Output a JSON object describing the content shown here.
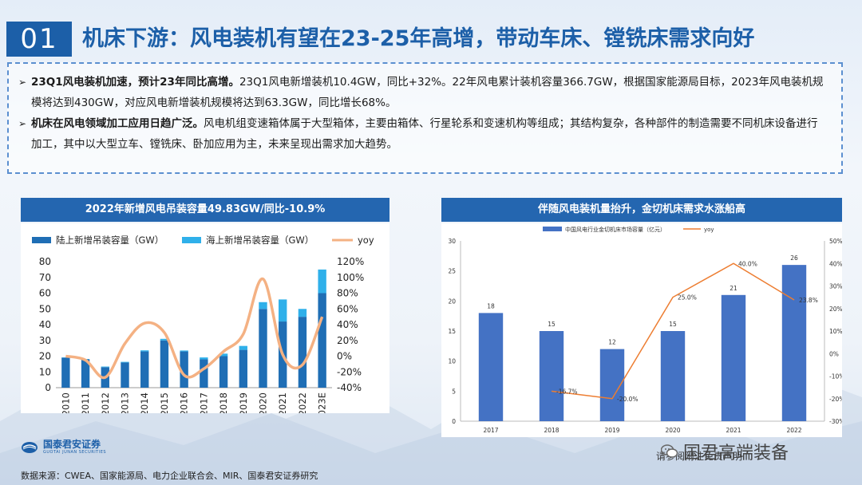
{
  "slide": {
    "number": "01",
    "title": "机床下游：风电装机有望在23-25年高增，带动车床、镗铣床需求向好"
  },
  "bullets": [
    {
      "marker": "➢",
      "bold": "23Q1风电装机加速，预计23年同比高增。",
      "text": "23Q1风电新增装机10.4GW，同比+32%。22年风电累计装机容量366.7GW，根据国家能源局目标，2023年风电装机规模将达到430GW，对应风电新增装机规模将达到63.3GW，同比增长68%。"
    },
    {
      "marker": "➢",
      "bold": "机床在风电领域加工应用日趋广泛。",
      "text": "风电机组变速箱体属于大型箱体，主要由箱体、行星轮系和变速机构等组成；其结构复杂，各种部件的制造需要不同机床设备进行加工，其中以大型立车、镗铣床、卧加应用为主，未来呈现出需求加大趋势。"
    }
  ],
  "left_chart_title": "2022年新增风电吊装容量49.83GW/同比-10.9%",
  "right_chart_title": "伴随风电装机量抬升，金切机床需求水涨船高",
  "chart_data": [
    {
      "type": "bar",
      "stacked": true,
      "categories": [
        "2010",
        "2011",
        "2012",
        "2013",
        "2014",
        "2015",
        "2016",
        "2017",
        "2018",
        "2019",
        "2020",
        "2021",
        "2022",
        "2023E"
      ],
      "series": [
        {
          "name": "陆上新增吊装容量（GW）",
          "kind": "bar",
          "color": "#1f6eb5",
          "values": [
            19,
            18,
            13,
            16,
            23,
            30,
            23,
            18,
            20,
            24,
            50,
            42,
            45,
            60
          ]
        },
        {
          "name": "海上新增吊装容量（GW）",
          "kind": "bar",
          "color": "#2fb0ea",
          "values": [
            0.2,
            0.2,
            0.4,
            0.4,
            0.7,
            1.0,
            0.6,
            1.2,
            1.6,
            2.5,
            4.3,
            14,
            5,
            15
          ]
        },
        {
          "name": "yoy",
          "kind": "line",
          "axis": "right",
          "color": "#f4b183",
          "values": [
            0.0,
            -0.05,
            -0.27,
            0.16,
            0.42,
            0.3,
            -0.24,
            -0.16,
            0.06,
            0.28,
            0.98,
            0.02,
            -0.11,
            0.5
          ]
        }
      ],
      "yticks_left": [
        "0",
        "10",
        "20",
        "30",
        "40",
        "50",
        "60",
        "70",
        "80"
      ],
      "yticks_right": [
        "-40%",
        "-20%",
        "0%",
        "20%",
        "40%",
        "60%",
        "80%",
        "100%",
        "120%"
      ],
      "ylim": [
        0,
        80
      ],
      "ylim_right": [
        -0.4,
        1.2
      ],
      "legend_position": "top"
    },
    {
      "type": "bar",
      "categories": [
        "2017",
        "2018",
        "2019",
        "2020",
        "2021",
        "2022"
      ],
      "series": [
        {
          "name": "中国风电行业金切机床市场容量（亿元）",
          "kind": "bar",
          "color": "#4472c4",
          "values": [
            18,
            15,
            12,
            15,
            21,
            26
          ],
          "labels": [
            "18",
            "15",
            "12",
            "15",
            "21",
            "26"
          ]
        },
        {
          "name": "yoy",
          "kind": "line",
          "axis": "right",
          "color": "#ed7d31",
          "values": [
            null,
            -0.167,
            -0.2,
            0.25,
            0.4,
            0.238
          ],
          "labels": [
            "",
            "-16.7%",
            "-20.0%",
            "25.0%",
            "40.0%",
            "23.8%"
          ]
        }
      ],
      "yticks_left": [
        "0",
        "5",
        "10",
        "15",
        "20",
        "25",
        "30"
      ],
      "yticks_right": [
        "-30%",
        "-20%",
        "-10%",
        "0%",
        "10%",
        "20%",
        "30%",
        "40%",
        "50%"
      ],
      "ylim": [
        0,
        30
      ],
      "ylim_right": [
        -0.3,
        0.5
      ],
      "legend_position": "top"
    }
  ],
  "footer": {
    "source": "数据来源：CWEA、国家能源局、电力企业联合会、MIR、国泰君安证券研究",
    "logo_name": "国泰君安证券",
    "logo_en": "GUOTAI JUNAN SECURITIES",
    "watermark": "国君高端装备",
    "watermark_sub": "请参阅附注免责声明"
  },
  "colors": {
    "brand": "#1c5fa8",
    "header_bar": "#2466b0",
    "dash_border": "#5b8fd0"
  }
}
